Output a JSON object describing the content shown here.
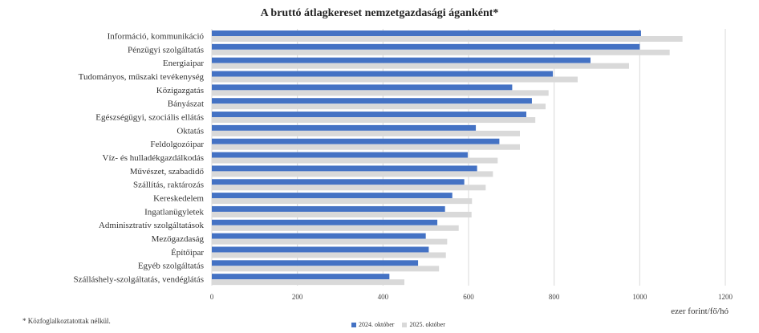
{
  "chart_data": {
    "type": "bar",
    "orientation": "horizontal",
    "title": "A bruttó átlagkereset nemzetgazdasági áganként*",
    "xlabel": "ezer forint/fő/hó",
    "ylabel": "",
    "xlim": [
      0,
      1200
    ],
    "xticks": [
      0,
      200,
      400,
      600,
      800,
      1000,
      1200
    ],
    "grid": true,
    "legend_position": "bottom",
    "categories": [
      "Információ, kommunikáció",
      "Pénzügyi szolgáltatás",
      "Energiaipar",
      "Tudományos, műszaki tevékenység",
      "Közigazgatás",
      "Bányászat",
      "Egészségügyi, szociális ellátás",
      "Oktatás",
      "Feldolgozóipar",
      "Víz- és hulladékgazdálkodás",
      "Művészet, szabadidő",
      "Szállítás, raktározás",
      "Kereskedelem",
      "Ingatlanügyletek",
      "Adminisztratív szolgáltatások",
      "Mezőgazdaság",
      "Építőipar",
      "Egyéb szolgáltatás",
      "Szálláshely-szolgáltatás, vendéglátás"
    ],
    "series": [
      {
        "name": "2024. október",
        "color": "#4472C4",
        "values": [
          1003,
          1000,
          885,
          797,
          702,
          748,
          735,
          617,
          672,
          598,
          620,
          590,
          562,
          545,
          527,
          500,
          507,
          482,
          415
        ]
      },
      {
        "name": "2025. október",
        "color": "#D9D9D9",
        "values": [
          1100,
          1070,
          975,
          855,
          787,
          780,
          756,
          720,
          720,
          668,
          657,
          640,
          608,
          607,
          577,
          550,
          547,
          531,
          450
        ]
      }
    ]
  },
  "footnote": "* Közfoglalkoztatottak nélkül."
}
